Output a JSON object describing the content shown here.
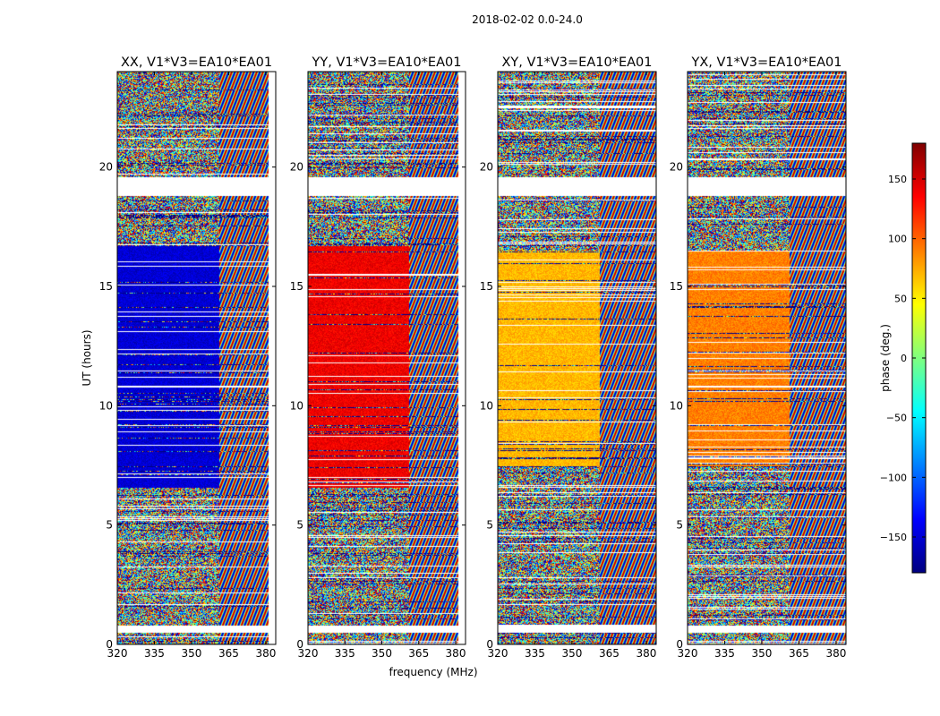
{
  "figure_title": "2018-02-02 0.0-24.0",
  "chart_data": [
    {
      "type": "heatmap",
      "title": "XX, V1*V3=EA10*EA01",
      "xlabel": "",
      "ylabel": "UT (hours)",
      "xlim": [
        320,
        384
      ],
      "ylim": [
        0,
        24
      ],
      "xticks": [
        320,
        335,
        350,
        365,
        380
      ],
      "yticks": [
        0,
        5,
        10,
        15,
        20
      ],
      "coherent_channel_max_mhz": 361,
      "coherent_hours": [
        6.6,
        16.7
      ],
      "coherent_phase_deg": -150,
      "blank_hours": [
        [
          18.8,
          19.6
        ],
        [
          0.5,
          0.8
        ]
      ],
      "frequency_edge_mhz": 381
    },
    {
      "type": "heatmap",
      "title": "YY, V1*V3=EA10*EA01",
      "xlabel": "frequency (MHz)",
      "ylabel": "",
      "xlim": [
        320,
        384
      ],
      "ylim": [
        0,
        24
      ],
      "xticks": [
        320,
        335,
        350,
        365,
        380
      ],
      "yticks": [
        0,
        5,
        10,
        15,
        20
      ],
      "coherent_channel_max_mhz": 361,
      "coherent_hours": [
        6.6,
        16.7
      ],
      "coherent_phase_deg": 140,
      "blank_hours": [
        [
          18.8,
          19.6
        ],
        [
          0.5,
          0.8
        ]
      ],
      "frequency_edge_mhz": 381
    },
    {
      "type": "heatmap",
      "title": "XY, V1*V3=EA10*EA01",
      "xlabel": "",
      "ylabel": "",
      "xlim": [
        320,
        384
      ],
      "ylim": [
        0,
        24
      ],
      "xticks": [
        320,
        335,
        350,
        365,
        380
      ],
      "yticks": [
        0,
        5,
        10,
        15,
        20
      ],
      "coherent_channel_max_mhz": 361,
      "coherent_hours": [
        7.5,
        16.5
      ],
      "coherent_phase_deg": 70,
      "blank_hours": [
        [
          18.8,
          19.6
        ],
        [
          0.5,
          0.8
        ]
      ],
      "frequency_edge_mhz": 384
    },
    {
      "type": "heatmap",
      "title": "YX, V1*V3=EA10*EA01",
      "xlabel": "",
      "ylabel": "",
      "xlim": [
        320,
        384
      ],
      "ylim": [
        0,
        24
      ],
      "xticks": [
        320,
        335,
        350,
        365,
        380
      ],
      "yticks": [
        0,
        5,
        10,
        15,
        20
      ],
      "coherent_channel_max_mhz": 361,
      "coherent_hours": [
        7.5,
        16.5
      ],
      "coherent_phase_deg": 90,
      "blank_hours": [
        [
          18.8,
          19.6
        ],
        [
          0.5,
          0.8
        ]
      ],
      "frequency_edge_mhz": 384
    }
  ],
  "colorbar": {
    "label": "phase (deg.)",
    "range": [
      -180,
      180
    ],
    "ticks": [
      150,
      100,
      50,
      0,
      -50,
      -100,
      -150
    ],
    "tick_labels": [
      "150",
      "100",
      "50",
      "0",
      "−50",
      "−100",
      "−150"
    ],
    "colormap": "jet",
    "colors": [
      "#00007f",
      "#0000ff",
      "#007fff",
      "#00ffff",
      "#7fff7f",
      "#ffff00",
      "#ff7f00",
      "#ff0000",
      "#7f0000"
    ]
  }
}
